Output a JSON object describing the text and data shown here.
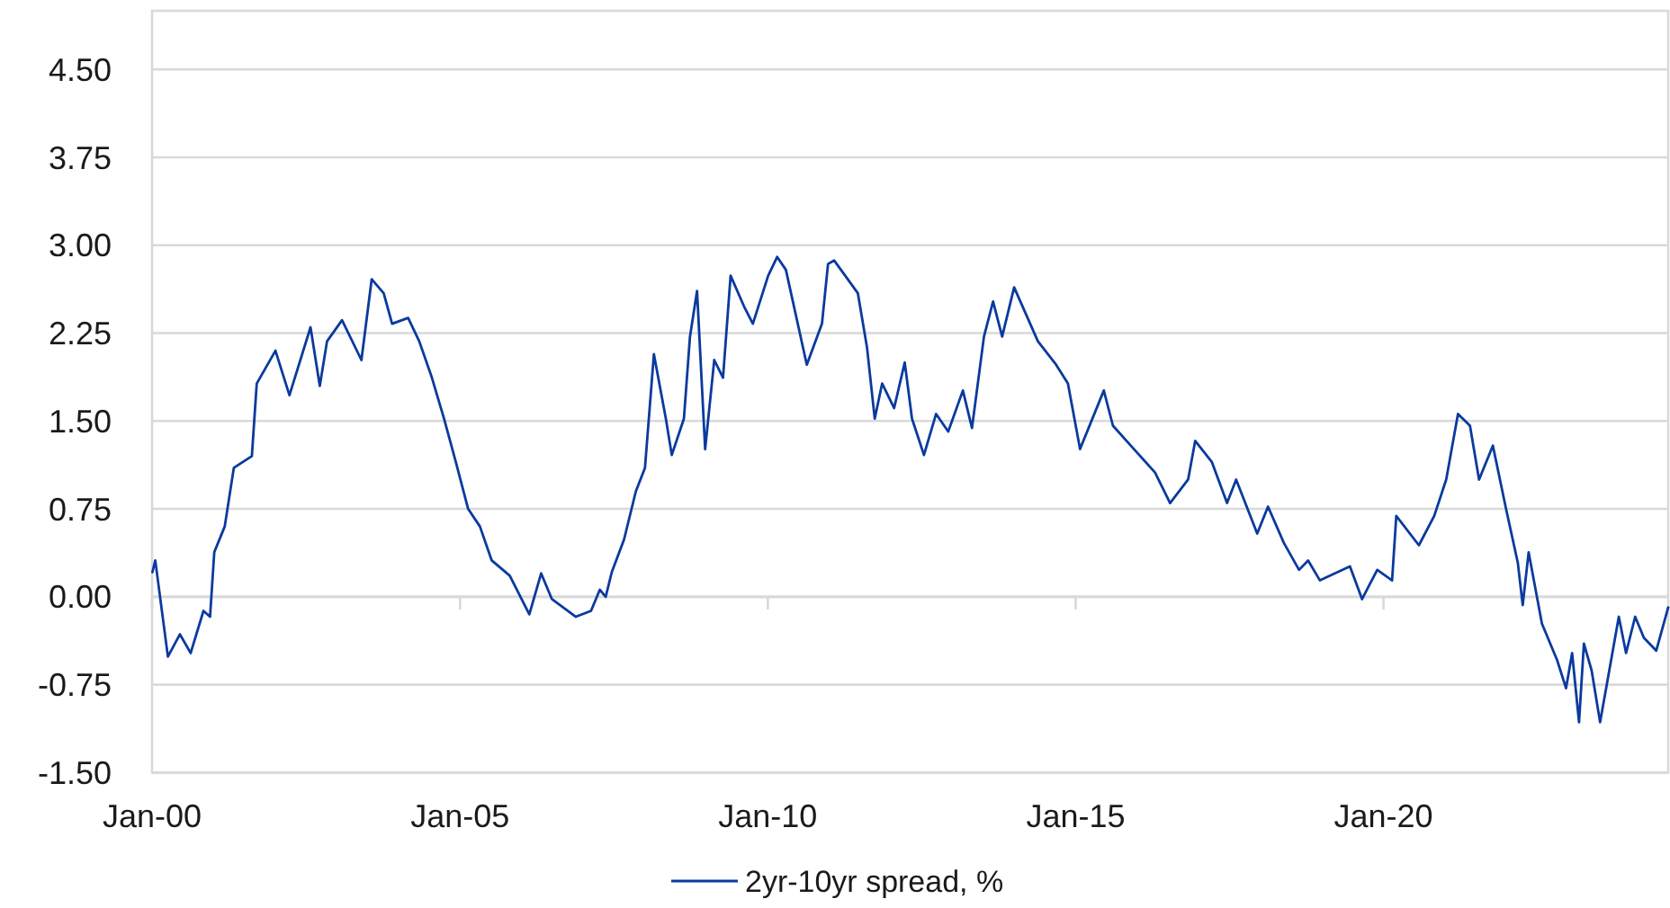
{
  "chart_data": {
    "type": "line",
    "legend": "bottom",
    "grid": "y",
    "marker": "none",
    "line_style": "solid",
    "xlim": [
      "2000-01-01",
      "2024-08-16"
    ],
    "xticks": [
      {
        "value": "2000-01-01",
        "label": "Jan-00"
      },
      {
        "value": "2005-01-01",
        "label": "Jan-05"
      },
      {
        "value": "2010-01-01",
        "label": "Jan-10"
      },
      {
        "value": "2015-01-01",
        "label": "Jan-15"
      },
      {
        "value": "2020-01-01",
        "label": "Jan-20"
      }
    ],
    "ylim": [
      -1.5,
      5.0
    ],
    "yticks": [
      {
        "value": -1.5,
        "label": "-1.50"
      },
      {
        "value": -0.75,
        "label": "-0.75"
      },
      {
        "value": 0,
        "label": "0.00"
      },
      {
        "value": 0.75,
        "label": "0.75"
      },
      {
        "value": 1.5,
        "label": "1.50"
      },
      {
        "value": 2.25,
        "label": "2.25"
      },
      {
        "value": 3,
        "label": "3.00"
      },
      {
        "value": 3.75,
        "label": "3.75"
      },
      {
        "value": 4.5,
        "label": "4.50"
      }
    ],
    "x": [
      "2000-01-03",
      "2000-01-20",
      "2000-04-04",
      "2000-06-14",
      "2000-08-17",
      "2000-11-01",
      "2000-12-10",
      "2001-01-04",
      "2001-03-07",
      "2001-04-30",
      "2001-08-15",
      "2001-09-13",
      "2002-01-02",
      "2002-03-26",
      "2002-07-29",
      "2002-09-22",
      "2002-11-04",
      "2003-02-01",
      "2003-05-27",
      "2003-07-27",
      "2003-10-06",
      "2003-11-25",
      "2004-02-28",
      "2004-05-04",
      "2004-07-18",
      "2004-09-28",
      "2004-12-07",
      "2005-02-18",
      "2005-04-29",
      "2005-07-08",
      "2005-10-23",
      "2006-02-16",
      "2006-04-27",
      "2006-06-30",
      "2006-11-19",
      "2007-02-17",
      "2007-04-10",
      "2007-05-15",
      "2007-06-20",
      "2007-09-01",
      "2007-11-10",
      "2008-01-03",
      "2008-02-25",
      "2008-05-06",
      "2008-06-10",
      "2008-08-21",
      "2008-09-26",
      "2008-11-07",
      "2008-12-25",
      "2009-02-17",
      "2009-04-10",
      "2009-05-25",
      "2009-08-12",
      "2009-10-04",
      "2010-01-03",
      "2010-02-25",
      "2010-04-18",
      "2010-08-20",
      "2010-11-18",
      "2010-12-24",
      "2011-01-29",
      "2011-06-19",
      "2011-08-12",
      "2011-09-27",
      "2011-11-10",
      "2012-01-20",
      "2012-03-23",
      "2012-05-05",
      "2012-07-15",
      "2012-09-25",
      "2012-12-06",
      "2013-03-03",
      "2013-04-26",
      "2013-07-06",
      "2013-08-29",
      "2013-10-22",
      "2014-01-01",
      "2014-05-22",
      "2014-09-07",
      "2014-11-16",
      "2015-01-27",
      "2015-06-17",
      "2015-08-10",
      "2015-12-13",
      "2016-04-16",
      "2016-07-14",
      "2016-10-29",
      "2016-12-10",
      "2017-03-19",
      "2017-06-17",
      "2017-08-10",
      "2017-12-13",
      "2018-02-15",
      "2018-05-20",
      "2018-08-18",
      "2018-10-11",
      "2018-12-20",
      "2019-06-16",
      "2019-08-27",
      "2019-11-25",
      "2020-02-21",
      "2020-03-17",
      "2020-07-29",
      "2020-10-28",
      "2021-01-07",
      "2021-03-18",
      "2021-05-28",
      "2021-07-21",
      "2021-10-11",
      "2021-12-28",
      "2022-03-08",
      "2022-04-06",
      "2022-05-11",
      "2022-07-29",
      "2022-10-27",
      "2022-12-19",
      "2023-01-24",
      "2023-03-06",
      "2023-04-04",
      "2023-05-20",
      "2023-07-09",
      "2023-08-25",
      "2023-10-28",
      "2023-12-10",
      "2024-02-02",
      "2024-03-25",
      "2024-06-06",
      "2024-08-16"
    ],
    "series": [
      {
        "name": "2yr-10yr spread, %",
        "color": "#0a3a9e",
        "values": [
          0.21,
          0.31,
          -0.51,
          -0.32,
          -0.48,
          -0.12,
          -0.17,
          0.38,
          0.6,
          1.1,
          1.2,
          1.82,
          2.1,
          1.72,
          2.3,
          1.8,
          2.18,
          2.36,
          2.02,
          2.71,
          2.59,
          2.33,
          2.38,
          2.18,
          1.87,
          1.52,
          1.15,
          0.75,
          0.6,
          0.31,
          0.18,
          -0.15,
          0.2,
          -0.02,
          -0.17,
          -0.12,
          0.06,
          0,
          0.21,
          0.49,
          0.9,
          1.1,
          2.07,
          1.52,
          1.21,
          1.52,
          2.22,
          2.61,
          1.26,
          2.02,
          1.87,
          2.74,
          2.48,
          2.33,
          2.74,
          2.9,
          2.79,
          1.98,
          2.33,
          2.84,
          2.87,
          2.59,
          2.13,
          1.52,
          1.82,
          1.61,
          2.0,
          1.52,
          1.21,
          1.56,
          1.41,
          1.76,
          1.44,
          2.22,
          2.52,
          2.22,
          2.64,
          2.18,
          1.98,
          1.82,
          1.26,
          1.76,
          1.46,
          1.26,
          1.06,
          0.8,
          1.0,
          1.33,
          1.15,
          0.8,
          1.0,
          0.54,
          0.77,
          0.46,
          0.23,
          0.31,
          0.14,
          0.26,
          -0.02,
          0.23,
          0.14,
          0.69,
          0.44,
          0.69,
          1.0,
          1.56,
          1.46,
          1.0,
          1.29,
          0.75,
          0.29,
          -0.07,
          0.38,
          -0.23,
          -0.54,
          -0.78,
          -0.48,
          -1.07,
          -0.4,
          -0.63,
          -1.07,
          -0.69,
          -0.17,
          -0.48,
          -0.17,
          -0.35,
          -0.46,
          -0.09
        ]
      }
    ]
  }
}
